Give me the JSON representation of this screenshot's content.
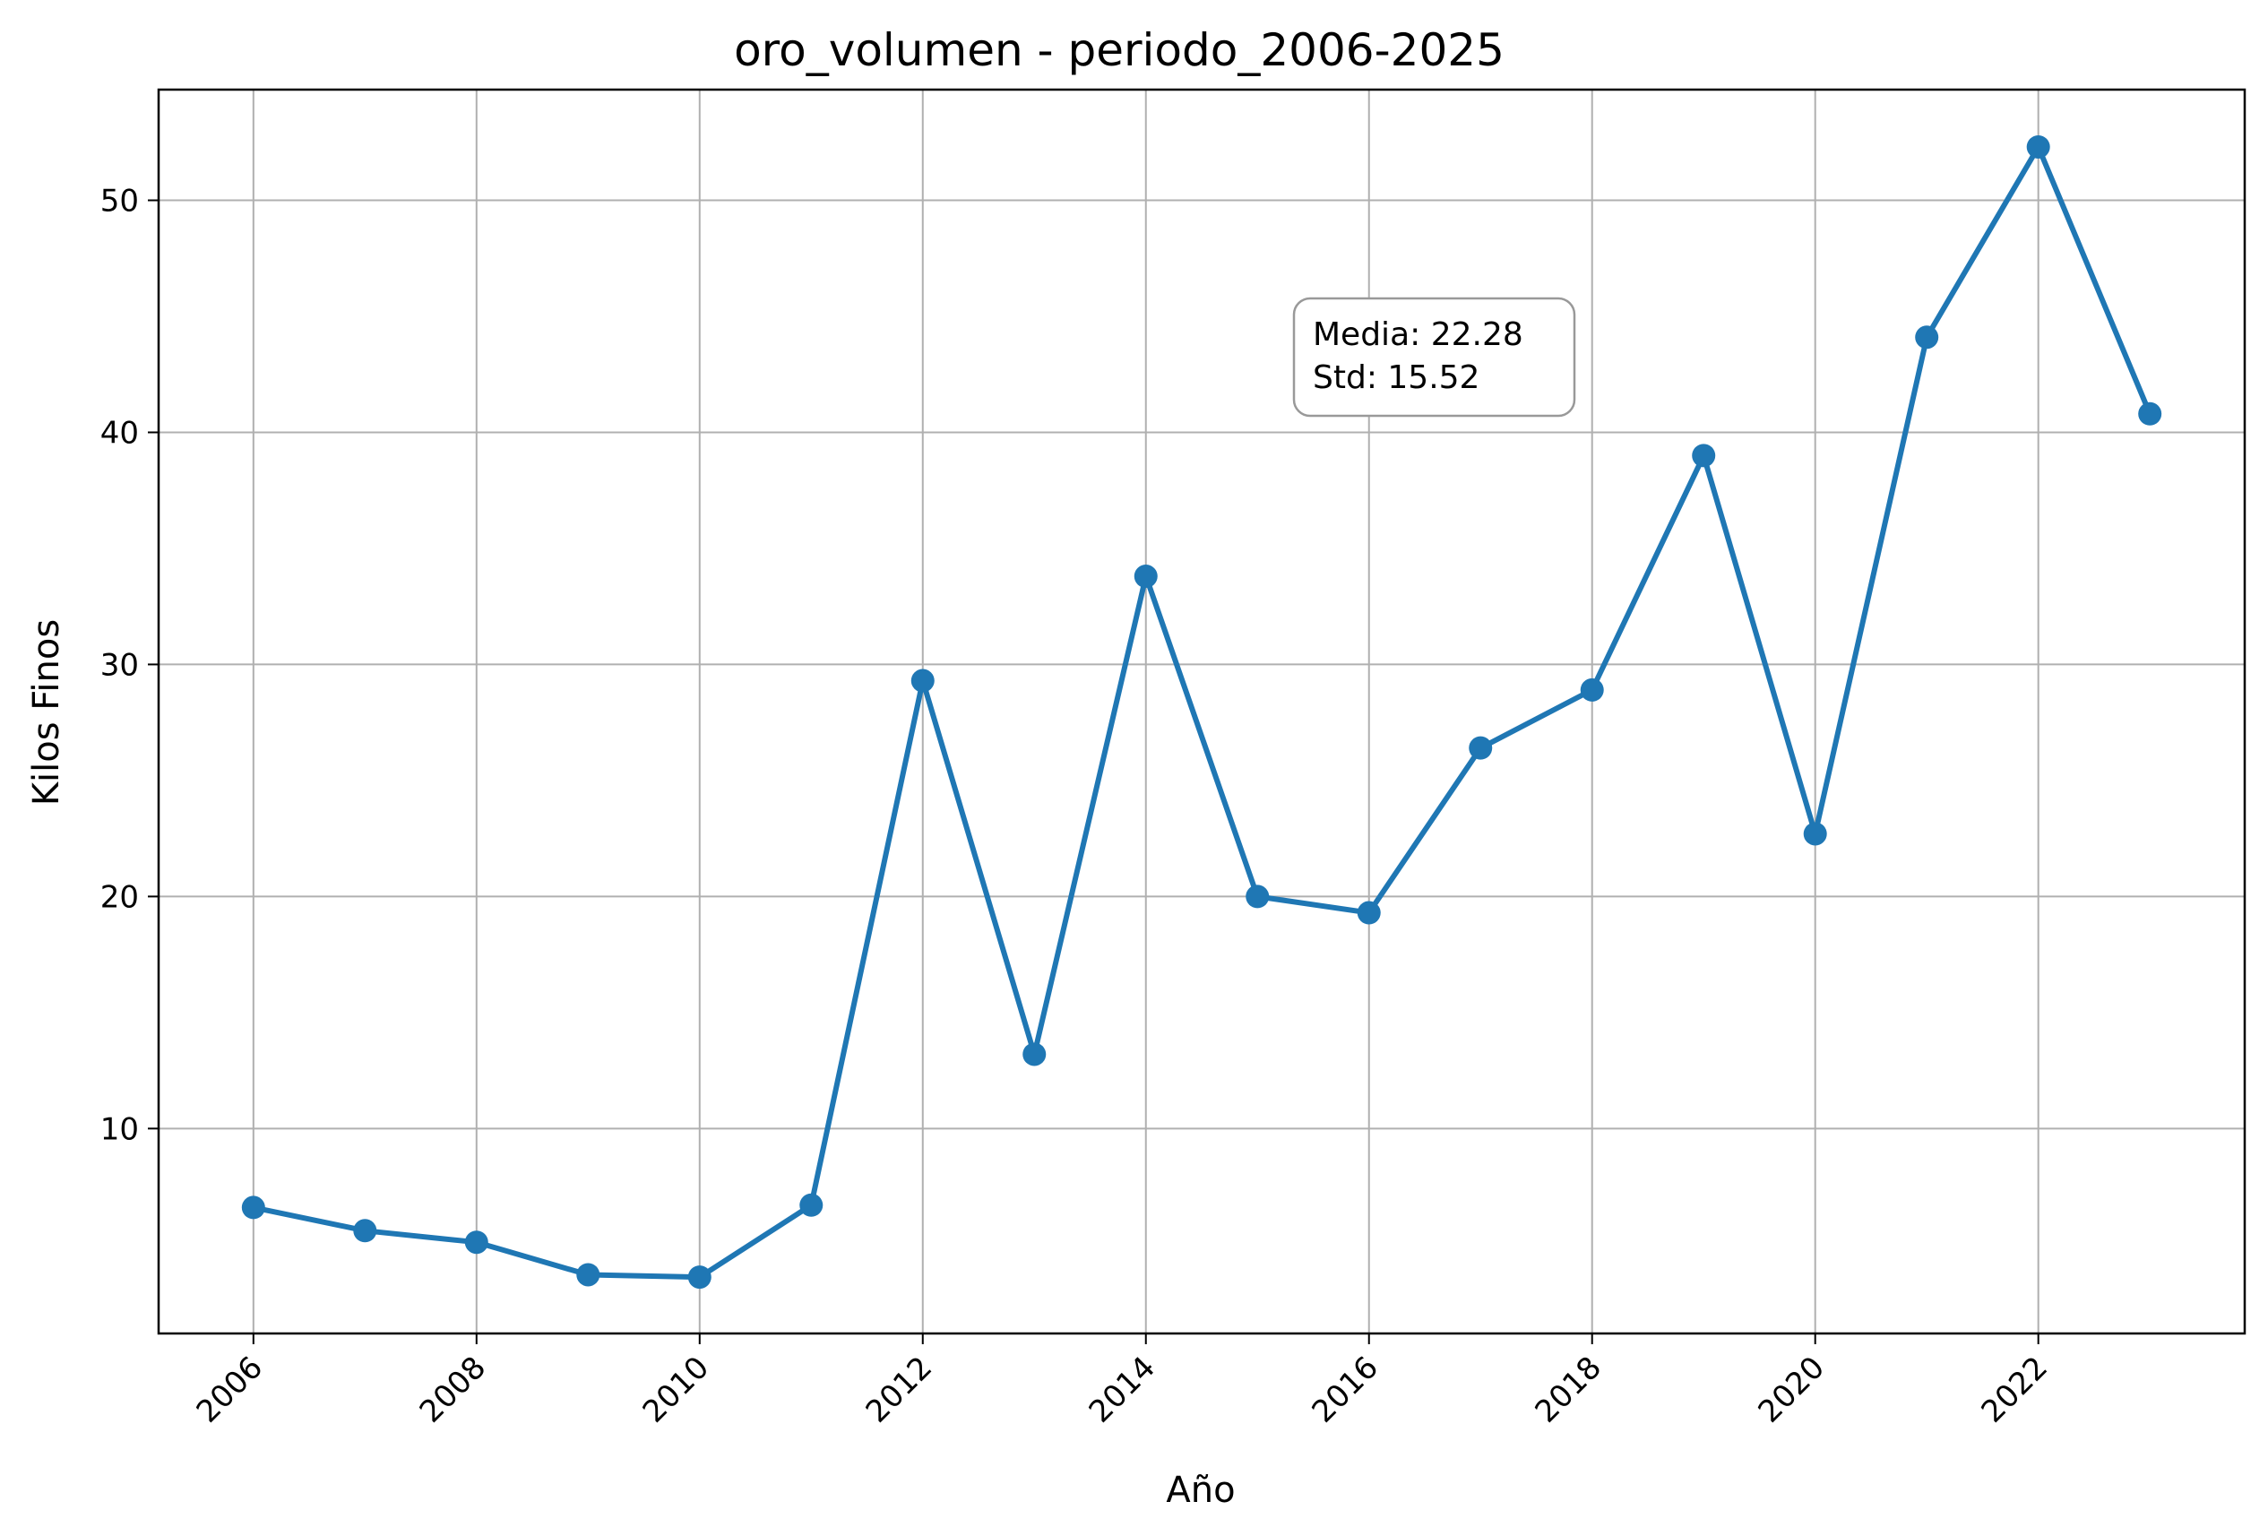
{
  "chart_data": {
    "type": "line",
    "title": "oro_volumen - periodo_2006-2025",
    "xlabel": "Año",
    "ylabel": "Kilos Finos",
    "x": [
      2006,
      2007,
      2008,
      2009,
      2010,
      2011,
      2012,
      2013,
      2014,
      2015,
      2016,
      2017,
      2018,
      2019,
      2020,
      2021,
      2022,
      2023
    ],
    "series": [
      {
        "values": [
          6.6,
          5.6,
          5.1,
          3.7,
          3.6,
          6.7,
          29.3,
          13.2,
          33.8,
          20.0,
          19.3,
          26.4,
          28.9,
          39.0,
          22.7,
          44.1,
          52.3,
          40.8
        ]
      }
    ],
    "xlim": [
      2005.15,
      2023.85
    ],
    "ylim": [
      1.17,
      54.77
    ],
    "xticks": [
      2006,
      2008,
      2010,
      2012,
      2014,
      2016,
      2018,
      2020,
      2022
    ],
    "yticks": [
      10,
      20,
      30,
      40,
      50
    ],
    "grid": true,
    "line_color": "#1f77b4",
    "annotation": {
      "lines": [
        "Media: 22.28",
        "Std: 15.52"
      ]
    }
  }
}
